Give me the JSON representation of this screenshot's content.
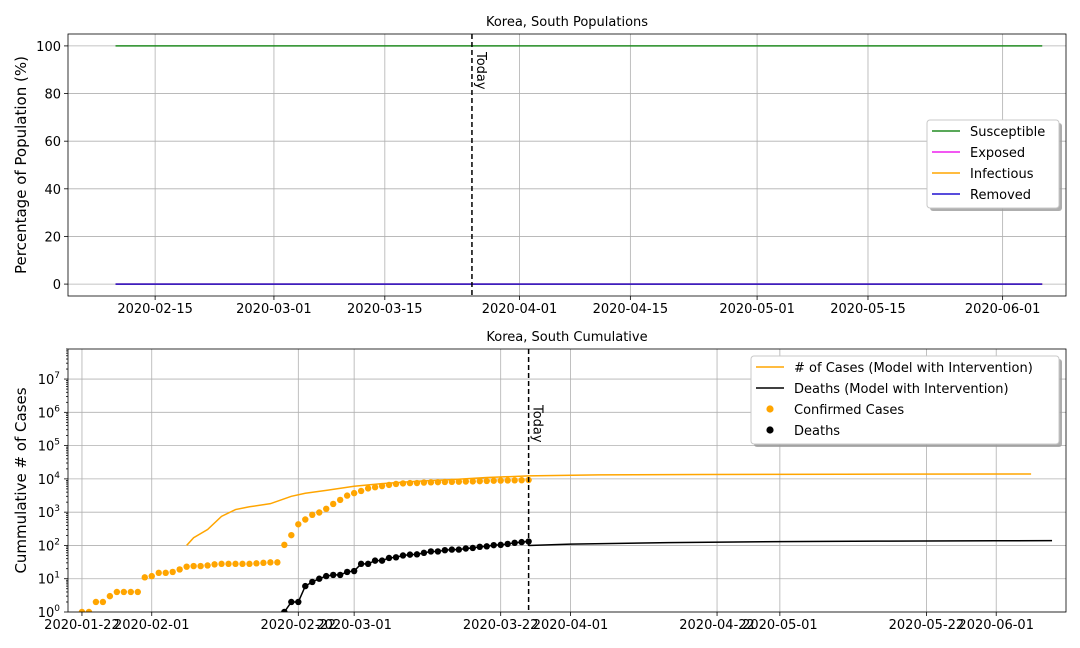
{
  "chart_data": [
    {
      "id": "populations",
      "type": "line",
      "title": "Korea, South Populations",
      "xlabel": "",
      "ylabel": "Percentage of Population (%)",
      "x_range": [
        "2020-02-04",
        "2020-06-09"
      ],
      "ylim": [
        -5,
        105
      ],
      "y_ticks": [
        0,
        20,
        40,
        60,
        80,
        100
      ],
      "x_ticks": [
        "2020-02-15",
        "2020-03-01",
        "2020-03-15",
        "2020-04-01",
        "2020-04-15",
        "2020-05-01",
        "2020-05-15",
        "2020-06-01"
      ],
      "grid": true,
      "legend_position": "center-right",
      "today": {
        "date": "2020-03-26",
        "label": "Today"
      },
      "series": [
        {
          "name": "Susceptible",
          "color": "#228B22",
          "x": [
            "2020-02-10",
            "2020-06-06"
          ],
          "y": [
            100,
            100
          ]
        },
        {
          "name": "Exposed",
          "color": "#EE20EE",
          "x": [
            "2020-02-10",
            "2020-06-06"
          ],
          "y": [
            0,
            0
          ]
        },
        {
          "name": "Infectious",
          "color": "#FFA500",
          "x": [
            "2020-02-10",
            "2020-06-06"
          ],
          "y": [
            0,
            0
          ]
        },
        {
          "name": "Removed",
          "color": "#2010D0",
          "x": [
            "2020-02-10",
            "2020-06-06"
          ],
          "y": [
            0,
            0
          ]
        }
      ]
    },
    {
      "id": "cumulative",
      "type": "line",
      "title": "Korea, South Cumulative",
      "xlabel": "",
      "ylabel": "Cummulative # of Cases",
      "y_scale": "log",
      "ylim": [
        1,
        80000000
      ],
      "y_ticks": [
        {
          "value": 1,
          "label": "10",
          "exp": "0"
        },
        {
          "value": 10,
          "label": "10",
          "exp": "1"
        },
        {
          "value": 100,
          "label": "10",
          "exp": "2"
        },
        {
          "value": 1000,
          "label": "10",
          "exp": "3"
        },
        {
          "value": 10000,
          "label": "10",
          "exp": "4"
        },
        {
          "value": 100000,
          "label": "10",
          "exp": "5"
        },
        {
          "value": 1000000,
          "label": "10",
          "exp": "6"
        },
        {
          "value": 10000000,
          "label": "10",
          "exp": "7"
        }
      ],
      "x_range": [
        "2020-01-20",
        "2020-06-11"
      ],
      "x_ticks": [
        "2020-01-22",
        "2020-02-01",
        "2020-02-22",
        "2020-03-01",
        "2020-03-22",
        "2020-04-01",
        "2020-04-22",
        "2020-05-01",
        "2020-05-22",
        "2020-06-01"
      ],
      "grid": true,
      "legend_position": "upper-right",
      "today": {
        "date": "2020-03-26",
        "label": "Today"
      },
      "series": [
        {
          "name": "# of Cases (Model with Intervention)",
          "style": "line",
          "color": "#FFA500",
          "x": [
            "2020-02-06",
            "2020-02-07",
            "2020-02-09",
            "2020-02-11",
            "2020-02-13",
            "2020-02-15",
            "2020-02-18",
            "2020-02-21",
            "2020-02-23",
            "2020-02-26",
            "2020-03-01",
            "2020-03-05",
            "2020-03-10",
            "2020-03-15",
            "2020-03-20",
            "2020-03-26",
            "2020-04-05",
            "2020-04-20",
            "2020-05-10",
            "2020-06-06"
          ],
          "y": [
            100,
            170,
            300,
            750,
            1200,
            1450,
            1800,
            3000,
            3700,
            4500,
            6000,
            7200,
            8500,
            9500,
            11000,
            12300,
            13200,
            13600,
            13800,
            14000
          ]
        },
        {
          "name": "Deaths (Model with Intervention)",
          "style": "line",
          "color": "#000000",
          "x": [
            "2020-03-26",
            "2020-04-01",
            "2020-04-15",
            "2020-05-01",
            "2020-05-15",
            "2020-06-01",
            "2020-06-09"
          ],
          "y": [
            100,
            110,
            122,
            130,
            135,
            138,
            140
          ]
        },
        {
          "name": "Confirmed Cases",
          "style": "points",
          "color": "#FFA500",
          "x": [
            "2020-01-22",
            "2020-01-23",
            "2020-01-24",
            "2020-01-25",
            "2020-01-26",
            "2020-01-27",
            "2020-01-28",
            "2020-01-29",
            "2020-01-30",
            "2020-01-31",
            "2020-02-01",
            "2020-02-02",
            "2020-02-03",
            "2020-02-04",
            "2020-02-05",
            "2020-02-06",
            "2020-02-07",
            "2020-02-08",
            "2020-02-09",
            "2020-02-10",
            "2020-02-11",
            "2020-02-12",
            "2020-02-13",
            "2020-02-14",
            "2020-02-15",
            "2020-02-16",
            "2020-02-17",
            "2020-02-18",
            "2020-02-19",
            "2020-02-20",
            "2020-02-21",
            "2020-02-22",
            "2020-02-23",
            "2020-02-24",
            "2020-02-25",
            "2020-02-26",
            "2020-02-27",
            "2020-02-28",
            "2020-02-29",
            "2020-03-01",
            "2020-03-02",
            "2020-03-03",
            "2020-03-04",
            "2020-03-05",
            "2020-03-06",
            "2020-03-07",
            "2020-03-08",
            "2020-03-09",
            "2020-03-10",
            "2020-03-11",
            "2020-03-12",
            "2020-03-13",
            "2020-03-14",
            "2020-03-15",
            "2020-03-16",
            "2020-03-17",
            "2020-03-18",
            "2020-03-19",
            "2020-03-20",
            "2020-03-21",
            "2020-03-22",
            "2020-03-23",
            "2020-03-24",
            "2020-03-25",
            "2020-03-26"
          ],
          "y": [
            1,
            1,
            2,
            2,
            3,
            4,
            4,
            4,
            4,
            11,
            12,
            15,
            15,
            16,
            19,
            23,
            24,
            24,
            25,
            27,
            28,
            28,
            28,
            28,
            28,
            29,
            30,
            31,
            31,
            104,
            204,
            433,
            602,
            833,
            977,
            1261,
            1766,
            2337,
            3150,
            3736,
            4335,
            5186,
            5621,
            6088,
            6593,
            7041,
            7314,
            7478,
            7513,
            7755,
            7869,
            7979,
            8086,
            8162,
            8236,
            8320,
            8413,
            8565,
            8652,
            8799,
            8897,
            8961,
            9037,
            9137,
            9241
          ]
        },
        {
          "name": "Deaths",
          "style": "points-line",
          "color": "#000000",
          "x": [
            "2020-02-20",
            "2020-02-21",
            "2020-02-22",
            "2020-02-23",
            "2020-02-24",
            "2020-02-25",
            "2020-02-26",
            "2020-02-27",
            "2020-02-28",
            "2020-02-29",
            "2020-03-01",
            "2020-03-02",
            "2020-03-03",
            "2020-03-04",
            "2020-03-05",
            "2020-03-06",
            "2020-03-07",
            "2020-03-08",
            "2020-03-09",
            "2020-03-10",
            "2020-03-11",
            "2020-03-12",
            "2020-03-13",
            "2020-03-14",
            "2020-03-15",
            "2020-03-16",
            "2020-03-17",
            "2020-03-18",
            "2020-03-19",
            "2020-03-20",
            "2020-03-21",
            "2020-03-22",
            "2020-03-23",
            "2020-03-24",
            "2020-03-25",
            "2020-03-26"
          ],
          "y": [
            1,
            2,
            2,
            6,
            8,
            10,
            12,
            13,
            13,
            16,
            17,
            28,
            28,
            35,
            35,
            42,
            44,
            50,
            53,
            54,
            60,
            66,
            66,
            72,
            75,
            75,
            81,
            84,
            91,
            94,
            102,
            104,
            111,
            120,
            126,
            131
          ]
        }
      ]
    }
  ]
}
